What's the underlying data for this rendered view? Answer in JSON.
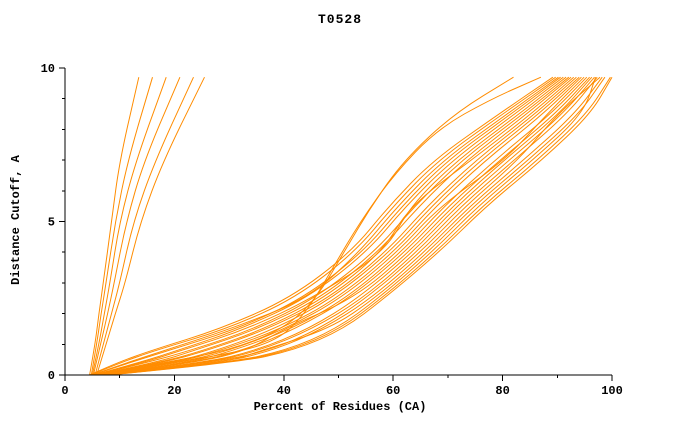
{
  "page": {
    "background": "#FFFFFF"
  },
  "colors": {
    "line": "#FF8C00",
    "axis": "#000000",
    "text": "#000000"
  },
  "chart_data": {
    "type": "line",
    "title": "T0528",
    "xlabel": "Percent of Residues (CA)",
    "ylabel": "Distance Cutoff, A",
    "xlim": [
      0,
      100
    ],
    "ylim": [
      0,
      10
    ],
    "x_major_ticks": [
      0,
      20,
      40,
      60,
      80,
      100
    ],
    "x_minor_step": 10,
    "y_major_ticks": [
      0,
      5,
      10
    ],
    "y_minor_step": 1,
    "grid": false,
    "legend": "none",
    "series": [
      [
        [
          4.5,
          0
        ],
        [
          5.5,
          1
        ],
        [
          6.2,
          2
        ],
        [
          7.0,
          3
        ],
        [
          8.5,
          5
        ],
        [
          10.0,
          7
        ],
        [
          13.5,
          9.7
        ]
      ],
      [
        [
          4.8,
          0
        ],
        [
          5.8,
          1
        ],
        [
          6.6,
          2
        ],
        [
          7.5,
          3
        ],
        [
          9.2,
          5
        ],
        [
          11.5,
          7
        ],
        [
          16.0,
          9.7
        ]
      ],
      [
        [
          5.0,
          0
        ],
        [
          6.2,
          1
        ],
        [
          7.2,
          2
        ],
        [
          8.2,
          3
        ],
        [
          10.0,
          5
        ],
        [
          13.0,
          7
        ],
        [
          18.5,
          9.7
        ]
      ],
      [
        [
          5.2,
          0
        ],
        [
          6.5,
          1
        ],
        [
          7.8,
          2
        ],
        [
          9.0,
          3
        ],
        [
          11.2,
          5
        ],
        [
          14.5,
          7
        ],
        [
          21.0,
          9.7
        ]
      ],
      [
        [
          5.5,
          0
        ],
        [
          7.0,
          1
        ],
        [
          8.5,
          2
        ],
        [
          10.0,
          3
        ],
        [
          12.5,
          5
        ],
        [
          16.5,
          7
        ],
        [
          23.5,
          9.7
        ]
      ],
      [
        [
          5.8,
          0
        ],
        [
          7.5,
          1
        ],
        [
          9.2,
          2
        ],
        [
          11.0,
          3
        ],
        [
          13.8,
          5
        ],
        [
          18.0,
          7
        ],
        [
          25.5,
          9.7
        ]
      ],
      [
        [
          6.0,
          0
        ],
        [
          18,
          0.4
        ],
        [
          30,
          0.8
        ],
        [
          40,
          1.5
        ],
        [
          46,
          2.5
        ],
        [
          51,
          4
        ],
        [
          56,
          5.5
        ],
        [
          62,
          7
        ],
        [
          71,
          8.5
        ],
        [
          82,
          9.7
        ]
      ],
      [
        [
          6.5,
          0
        ],
        [
          24,
          0.5
        ],
        [
          38,
          1
        ],
        [
          44,
          2
        ],
        [
          49,
          3.5
        ],
        [
          54,
          5
        ],
        [
          60,
          6.5
        ],
        [
          68,
          8
        ],
        [
          78,
          9
        ],
        [
          87,
          9.7
        ]
      ],
      [
        [
          4.5,
          0
        ],
        [
          9.5,
          0.4
        ],
        [
          15.8,
          0.8
        ],
        [
          28.4,
          1.5
        ],
        [
          41.2,
          2.5
        ],
        [
          52.3,
          4
        ],
        [
          59.2,
          5.5
        ],
        [
          67.3,
          7
        ],
        [
          79.3,
          8.5
        ],
        [
          89.2,
          9.7
        ]
      ],
      [
        [
          4.7,
          0
        ],
        [
          10.1,
          0.4
        ],
        [
          16.5,
          0.8
        ],
        [
          29.6,
          1.5
        ],
        [
          42.1,
          2.5
        ],
        [
          53.0,
          4
        ],
        [
          60.0,
          5.5
        ],
        [
          68.2,
          7
        ],
        [
          80.0,
          8.5
        ],
        [
          89.7,
          9.7
        ]
      ],
      [
        [
          4.9,
          0
        ],
        [
          11.3,
          0.4
        ],
        [
          18.2,
          0.8
        ],
        [
          30.3,
          1.5
        ],
        [
          44.5,
          2.5
        ],
        [
          53.8,
          4
        ],
        [
          60.8,
          5.5
        ],
        [
          69.1,
          7
        ],
        [
          80.8,
          8.5
        ],
        [
          90.2,
          9.7
        ]
      ],
      [
        [
          5.0,
          0
        ],
        [
          11.8,
          0.4
        ],
        [
          18.9,
          0.8
        ],
        [
          31.5,
          1.5
        ],
        [
          43.6,
          2.5
        ],
        [
          54.5,
          4
        ],
        [
          61.6,
          5.5
        ],
        [
          69.9,
          7
        ],
        [
          81.5,
          8.5
        ],
        [
          90.6,
          9.7
        ]
      ],
      [
        [
          5.2,
          0
        ],
        [
          13.5,
          0.4
        ],
        [
          20.6,
          0.8
        ],
        [
          32.2,
          1.5
        ],
        [
          44.3,
          2.5
        ],
        [
          55.2,
          4
        ],
        [
          62.3,
          5.5
        ],
        [
          70.8,
          7
        ],
        [
          82.2,
          8.5
        ],
        [
          91.1,
          9.7
        ]
      ],
      [
        [
          5.3,
          0
        ],
        [
          14.2,
          0.4
        ],
        [
          21.3,
          0.8
        ],
        [
          33.4,
          1.5
        ],
        [
          45.2,
          2.5
        ],
        [
          58.5,
          4
        ],
        [
          63.1,
          5.5
        ],
        [
          71.7,
          7
        ],
        [
          83.0,
          8.5
        ],
        [
          91.6,
          9.7
        ]
      ],
      [
        [
          5.5,
          0
        ],
        [
          14.8,
          0.4
        ],
        [
          23.0,
          0.8
        ],
        [
          34.6,
          1.5
        ],
        [
          45.8,
          2.5
        ],
        [
          56.6,
          4
        ],
        [
          63.9,
          5.5
        ],
        [
          72.5,
          7
        ],
        [
          83.7,
          8.5
        ],
        [
          92.1,
          9.7
        ]
      ],
      [
        [
          5.6,
          0
        ],
        [
          16.5,
          0.4
        ],
        [
          23.7,
          0.8
        ],
        [
          35.3,
          1.5
        ],
        [
          46.7,
          2.5
        ],
        [
          57.3,
          4
        ],
        [
          64.7,
          5.5
        ],
        [
          73.4,
          7
        ],
        [
          84.4,
          8.5
        ],
        [
          92.5,
          9.7
        ]
      ],
      [
        [
          5.8,
          0
        ],
        [
          17.2,
          0.4
        ],
        [
          25.4,
          0.8
        ],
        [
          36.5,
          1.5
        ],
        [
          47.4,
          2.5
        ],
        [
          58.0,
          4
        ],
        [
          63.0,
          5.5
        ],
        [
          74.3,
          7
        ],
        [
          85.2,
          8.5
        ],
        [
          93.0,
          9.7
        ]
      ],
      [
        [
          5.9,
          0
        ],
        [
          17.8,
          0.4
        ],
        [
          26.1,
          0.8
        ],
        [
          37.2,
          1.5
        ],
        [
          48.3,
          2.5
        ],
        [
          58.7,
          4
        ],
        [
          66.2,
          5.5
        ],
        [
          75.1,
          7
        ],
        [
          85.9,
          8.5
        ],
        [
          93.5,
          9.7
        ]
      ],
      [
        [
          6.0,
          0
        ],
        [
          19.5,
          0.4
        ],
        [
          27.8,
          0.8
        ],
        [
          38.4,
          1.5
        ],
        [
          48.9,
          2.5
        ],
        [
          59.4,
          4
        ],
        [
          67.0,
          5.5
        ],
        [
          76.0,
          7
        ],
        [
          86.6,
          8.5
        ],
        [
          94.0,
          9.7
        ]
      ],
      [
        [
          6.2,
          0
        ],
        [
          20.2,
          0.4
        ],
        [
          28.5,
          0.8
        ],
        [
          39.6,
          1.5
        ],
        [
          49.8,
          2.5
        ],
        [
          60.1,
          4
        ],
        [
          67.8,
          5.5
        ],
        [
          76.9,
          7
        ],
        [
          87.4,
          8.5
        ],
        [
          94.4,
          9.7
        ]
      ],
      [
        [
          6.3,
          0
        ],
        [
          20.8,
          0.4
        ],
        [
          30.2,
          0.8
        ],
        [
          40.3,
          1.5
        ],
        [
          50.5,
          2.5
        ],
        [
          60.8,
          4
        ],
        [
          68.5,
          5.5
        ],
        [
          80.5,
          7
        ],
        [
          88.1,
          8.5
        ],
        [
          94.9,
          9.7
        ]
      ],
      [
        [
          6.5,
          0
        ],
        [
          22.5,
          0.4
        ],
        [
          30.9,
          0.8
        ],
        [
          41.5,
          1.5
        ],
        [
          51.4,
          2.5
        ],
        [
          61.5,
          4
        ],
        [
          69.3,
          5.5
        ],
        [
          78.6,
          7
        ],
        [
          88.8,
          8.5
        ],
        [
          95.4,
          9.7
        ]
      ],
      [
        [
          6.6,
          0
        ],
        [
          23.2,
          0.4
        ],
        [
          32.6,
          0.8
        ],
        [
          42.2,
          1.5
        ],
        [
          52.0,
          2.5
        ],
        [
          62.2,
          4
        ],
        [
          70.1,
          5.5
        ],
        [
          79.5,
          7
        ],
        [
          89.6,
          8.5
        ],
        [
          95.9,
          9.7
        ]
      ],
      [
        [
          6.8,
          0
        ],
        [
          23.8,
          0.4
        ],
        [
          33.3,
          0.8
        ],
        [
          40.0,
          1.5
        ],
        [
          52.9,
          2.5
        ],
        [
          62.9,
          4
        ],
        [
          70.9,
          5.5
        ],
        [
          80.3,
          7
        ],
        [
          90.3,
          8.5
        ],
        [
          96.3,
          9.7
        ]
      ],
      [
        [
          6.9,
          0
        ],
        [
          25.5,
          0.4
        ],
        [
          35.0,
          0.8
        ],
        [
          44.6,
          1.5
        ],
        [
          53.6,
          2.5
        ],
        [
          63.6,
          4
        ],
        [
          71.6,
          5.5
        ],
        [
          81.2,
          7
        ],
        [
          91.0,
          8.5
        ],
        [
          96.8,
          9.7
        ]
      ],
      [
        [
          7.0,
          0
        ],
        [
          26.2,
          0.4
        ],
        [
          35.7,
          0.8
        ],
        [
          45.3,
          1.5
        ],
        [
          54.5,
          2.5
        ],
        [
          64.3,
          4
        ],
        [
          72.4,
          5.5
        ],
        [
          82.1,
          7
        ],
        [
          91.8,
          8.5
        ],
        [
          97.3,
          9.7
        ]
      ],
      [
        [
          7.2,
          0
        ],
        [
          26.8,
          0.4
        ],
        [
          37.4,
          0.8
        ],
        [
          46.5,
          1.5
        ],
        [
          55.1,
          2.5
        ],
        [
          65.0,
          4
        ],
        [
          73.2,
          5.5
        ],
        [
          82.9,
          7
        ],
        [
          90.0,
          8.5
        ],
        [
          97.8,
          9.7
        ]
      ],
      [
        [
          7.4,
          0
        ],
        [
          28.5,
          0.4
        ],
        [
          38.1,
          0.8
        ],
        [
          47.2,
          1.5
        ],
        [
          56.0,
          2.5
        ],
        [
          65.7,
          4
        ],
        [
          74.0,
          5.5
        ],
        [
          83.8,
          7
        ],
        [
          93.2,
          8.5
        ],
        [
          98.2,
          9.7
        ]
      ],
      [
        [
          7.5,
          0
        ],
        [
          29.2,
          0.4
        ],
        [
          36.0,
          0.8
        ],
        [
          48.4,
          1.5
        ],
        [
          56.7,
          2.5
        ],
        [
          66.4,
          4
        ],
        [
          74.7,
          5.5
        ],
        [
          84.7,
          7
        ],
        [
          94.0,
          8.5
        ],
        [
          98.7,
          9.7
        ]
      ],
      [
        [
          7.7,
          0
        ],
        [
          29.8,
          0.4
        ],
        [
          40.5,
          0.8
        ],
        [
          49.6,
          1.5
        ],
        [
          57.3,
          2.5
        ],
        [
          67.1,
          4
        ],
        [
          75.5,
          5.5
        ],
        [
          85.5,
          7
        ],
        [
          94.7,
          8.5
        ],
        [
          97.0,
          9.7
        ]
      ],
      [
        [
          7.8,
          0
        ],
        [
          30.5,
          0.4
        ],
        [
          41.2,
          0.8
        ],
        [
          50.3,
          1.5
        ],
        [
          57.9,
          2.5
        ],
        [
          67.8,
          4
        ],
        [
          76.3,
          5.5
        ],
        [
          86.4,
          7
        ],
        [
          95.4,
          8.5
        ],
        [
          99.7,
          9.7
        ]
      ],
      [
        [
          8.0,
          0
        ],
        [
          31.2,
          0.4
        ],
        [
          41.9,
          0.8
        ],
        [
          51.0,
          1.5
        ],
        [
          58.4,
          2.5
        ],
        [
          68.4,
          4
        ],
        [
          77.0,
          5.5
        ],
        [
          87.2,
          7
        ],
        [
          96.1,
          8.5
        ],
        [
          100,
          9.7
        ]
      ]
    ]
  }
}
